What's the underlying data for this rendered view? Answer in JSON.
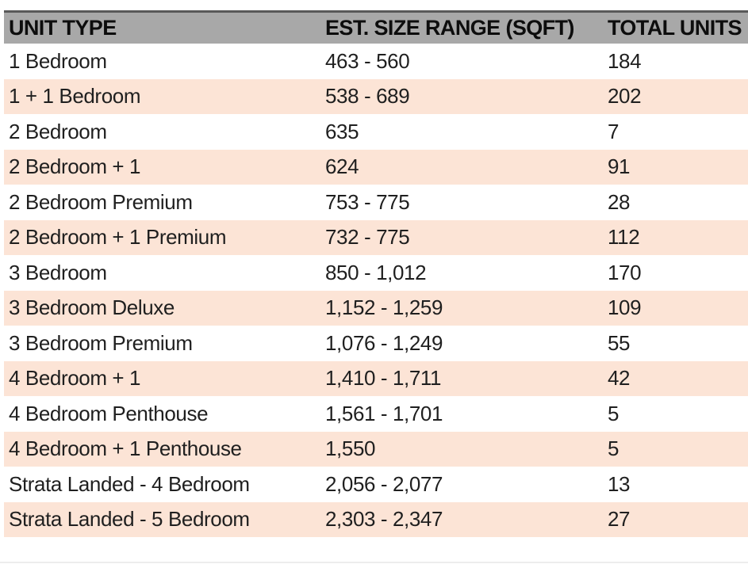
{
  "chart_data": {
    "type": "table",
    "title": "",
    "columns": [
      "UNIT TYPE",
      "EST. SIZE RANGE (SQFT)",
      "TOTAL UNITS"
    ],
    "rows": [
      {
        "unit_type": "1 Bedroom",
        "size_range": "463 - 560",
        "total_units": 184
      },
      {
        "unit_type": "1 + 1 Bedroom",
        "size_range": "538 - 689",
        "total_units": 202
      },
      {
        "unit_type": "2 Bedroom",
        "size_range": "635",
        "total_units": 7
      },
      {
        "unit_type": "2 Bedroom + 1",
        "size_range": "624",
        "total_units": 91
      },
      {
        "unit_type": "2 Bedroom Premium",
        "size_range": "753 - 775",
        "total_units": 28
      },
      {
        "unit_type": "2 Bedroom + 1 Premium",
        "size_range": "732 - 775",
        "total_units": 112
      },
      {
        "unit_type": "3 Bedroom",
        "size_range": "850 - 1,012",
        "total_units": 170
      },
      {
        "unit_type": "3 Bedroom Deluxe",
        "size_range": "1,152 - 1,259",
        "total_units": 109
      },
      {
        "unit_type": "3 Bedroom Premium",
        "size_range": "1,076 - 1,249",
        "total_units": 55
      },
      {
        "unit_type": "4 Bedroom + 1",
        "size_range": "1,410 - 1,711",
        "total_units": 42
      },
      {
        "unit_type": "4 Bedroom Penthouse",
        "size_range": "1,561 - 1,701",
        "total_units": 5
      },
      {
        "unit_type": "4 Bedroom + 1 Penthouse",
        "size_range": "1,550",
        "total_units": 5
      },
      {
        "unit_type": "Strata Landed - 4 Bedroom",
        "size_range": "2,056 - 2,077",
        "total_units": 13
      },
      {
        "unit_type": "Strata Landed - 5 Bedroom",
        "size_range": "2,303 - 2,347",
        "total_units": 27
      }
    ],
    "layout": {
      "grid": false,
      "header_style": "gray-fill-bold",
      "row_banding": "alternating-peach"
    }
  },
  "colors": {
    "header_bg": "#a8a8a8",
    "header_top_border": "#595959",
    "row_bg": "#ffffff",
    "row_alt_bg": "#fce4d6",
    "text": "#1f1f1f"
  }
}
